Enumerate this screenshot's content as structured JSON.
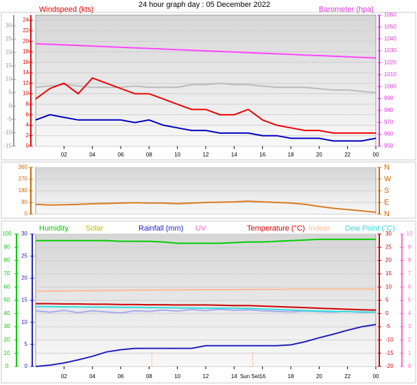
{
  "chart_data": [
    {
      "type": "line",
      "title": "24 hour graph day : 05 December 2022",
      "x": [
        0,
        1,
        2,
        3,
        4,
        5,
        6,
        7,
        8,
        9,
        10,
        11,
        12,
        13,
        14,
        15,
        16,
        17,
        18,
        19,
        20,
        21,
        22,
        23,
        24
      ],
      "xlim": [
        0,
        24
      ],
      "xticks": [
        {
          "value": 2,
          "label": "02"
        },
        {
          "value": 4,
          "label": "04"
        },
        {
          "value": 6,
          "label": "06"
        },
        {
          "value": 8,
          "label": "08"
        },
        10,
        12,
        14,
        16,
        18,
        20,
        22,
        {
          "value": 24,
          "label": "00"
        }
      ],
      "axes": [
        {
          "label": "Windspeed (kts)",
          "color": "#e00000",
          "ylim": [
            0,
            25
          ],
          "yticks": [
            0,
            2,
            4,
            6,
            8,
            10,
            12,
            14,
            16,
            18,
            20,
            22,
            24
          ],
          "grid": true
        },
        {
          "color": "#999999",
          "ylim": [
            -15,
            34
          ],
          "yticks": [
            -15,
            -10,
            -5,
            0,
            5,
            10,
            15,
            20,
            25,
            30
          ]
        },
        {
          "label": "Barometer (hpa)",
          "color": "#dd33dd",
          "ylim": [
            950,
            1060
          ],
          "yticks": [
            950,
            960,
            970,
            980,
            990,
            1000,
            1010,
            1020,
            1030,
            1040,
            1050,
            1060
          ]
        }
      ],
      "series": [
        {
          "color": "#ff44ff",
          "axis": 2,
          "values": [
            1036,
            1035.5,
            1035,
            1034.5,
            1034,
            1033.5,
            1033,
            1032.5,
            1032,
            1031.5,
            1031,
            1030.5,
            1030,
            1029.5,
            1029,
            1028.5,
            1028,
            1027.5,
            1027,
            1026.5,
            1026,
            1025.5,
            1025,
            1024.5,
            1024
          ]
        },
        {
          "color": "#bbbbbb",
          "axis": 1,
          "values": [
            7,
            7.5,
            8,
            7.5,
            7,
            7,
            7,
            7.5,
            7,
            7,
            7,
            8,
            8,
            8.5,
            8,
            8,
            7.5,
            7,
            7,
            7,
            6.5,
            6,
            6,
            5.5,
            5
          ]
        },
        {
          "color": "#ee0000",
          "axis": 0,
          "values": [
            9,
            11,
            12,
            10,
            13,
            12,
            11,
            10,
            10,
            9,
            8,
            7,
            7,
            6,
            6,
            7,
            5,
            4,
            3.5,
            3,
            3,
            2.5,
            2.5,
            2.5,
            2.5
          ]
        },
        {
          "color": "#0000c0",
          "axis": 0,
          "values": [
            5,
            6,
            5.5,
            5,
            5,
            5,
            5,
            4.5,
            5,
            4,
            3.5,
            3,
            3,
            2.5,
            2.5,
            2.5,
            2,
            2,
            1.5,
            1.5,
            1.5,
            1,
            1,
            1,
            1.5
          ]
        }
      ]
    },
    {
      "type": "line",
      "x": [
        0,
        1,
        2,
        3,
        4,
        5,
        6,
        7,
        8,
        9,
        10,
        11,
        12,
        13,
        14,
        15,
        16,
        17,
        18,
        19,
        20,
        21,
        22,
        23,
        24
      ],
      "xlim": [
        0,
        24
      ],
      "axes": [
        {
          "color": "#cc6600",
          "ylim": [
            0,
            360
          ],
          "yticks": [
            0,
            90,
            180,
            270,
            360
          ],
          "grid": true
        },
        {
          "color": "#cc6600",
          "ylim": [
            0,
            360
          ],
          "yticks": [
            {
              "value": 0,
              "label": "N"
            },
            {
              "value": 90,
              "label": "E"
            },
            {
              "value": 180,
              "label": "S"
            },
            {
              "value": 270,
              "label": "W"
            },
            {
              "value": 360,
              "label": "N"
            }
          ]
        }
      ],
      "series": [
        {
          "color": "#d97b22",
          "axis": 0,
          "values": [
            75,
            70,
            72,
            75,
            80,
            82,
            85,
            88,
            85,
            85,
            80,
            85,
            90,
            92,
            95,
            100,
            95,
            90,
            85,
            75,
            60,
            45,
            35,
            25,
            15
          ]
        }
      ]
    },
    {
      "type": "line",
      "x": [
        0,
        1,
        2,
        3,
        4,
        5,
        6,
        7,
        8,
        9,
        10,
        11,
        12,
        13,
        14,
        15,
        16,
        17,
        18,
        19,
        20,
        21,
        22,
        23,
        24
      ],
      "xlim": [
        0,
        24
      ],
      "xticks": [
        {
          "value": 2,
          "label": "02"
        },
        {
          "value": 4,
          "label": "04"
        },
        {
          "value": 6,
          "label": "06"
        },
        {
          "value": 8,
          "label": "08"
        },
        10,
        12,
        14,
        16,
        18,
        20,
        22,
        {
          "value": 24,
          "label": "00"
        }
      ],
      "markers": [
        {
          "value": 8.2
        },
        {
          "value": 15.3,
          "label": "Sun Set"
        }
      ],
      "axes": [
        {
          "color": "#00cc00",
          "ylim": [
            0,
            100
          ],
          "yticks": [
            0,
            10,
            20,
            30,
            40,
            50,
            60,
            70,
            80,
            90,
            100
          ],
          "grid": true
        },
        {
          "color": "#2020c0",
          "ylim": [
            0,
            30
          ],
          "yticks": [
            0,
            5,
            10,
            15,
            20,
            25,
            30
          ]
        },
        {
          "color": "#cc0000",
          "ylim": [
            -20,
            30
          ],
          "yticks": [
            -20,
            -15,
            -10,
            -5,
            0,
            5,
            10,
            15,
            20,
            25,
            30
          ]
        },
        {
          "color": "#ff66cc",
          "ylim": [
            0,
            10
          ],
          "yticks": [
            0,
            1,
            2,
            3,
            4,
            5,
            6,
            7,
            8,
            9,
            10
          ]
        }
      ],
      "series": [
        {
          "name": "Humidity",
          "color": "#00cc00",
          "axis": 0,
          "values": [
            95,
            95,
            95,
            95,
            95,
            95,
            94.5,
            94.5,
            94.5,
            94,
            93,
            93,
            93,
            93,
            93.5,
            94,
            94,
            94.5,
            95,
            95.5,
            96,
            96,
            96,
            96,
            96
          ]
        },
        {
          "name": "Solar",
          "color": "#bbbb00"
        },
        {
          "name": "Rainfall (mm)",
          "color": "#2020c0",
          "axis": 1,
          "values": [
            0,
            0.3,
            0.8,
            1.5,
            2.3,
            3.3,
            3.8,
            4.1,
            4.1,
            4.1,
            4.1,
            4.1,
            4.7,
            4.7,
            4.7,
            4.7,
            4.7,
            4.7,
            4.9,
            5.6,
            6.5,
            7.3,
            8.2,
            9,
            9.5
          ]
        },
        {
          "name": "UV",
          "color": "#ff66cc"
        },
        {
          "name": "Temperature (°C)",
          "color": "#cc0000",
          "axis": 2,
          "values": [
            3.7,
            3.7,
            3.6,
            3.6,
            3.5,
            3.5,
            3.4,
            3.4,
            3.3,
            3.3,
            3.2,
            3.2,
            3.2,
            3.1,
            3,
            3,
            2.8,
            2.6,
            2.4,
            2.2,
            2,
            1.8,
            1.6,
            1.4,
            1.3
          ]
        },
        {
          "name": "Indoor",
          "color": "#ffbb99",
          "axis": 2,
          "values": [
            8.4,
            8.5,
            8.5,
            8.6,
            8.6,
            8.7,
            8.7,
            8.8,
            8.8,
            8.9,
            8.9,
            9,
            9,
            9,
            9,
            9.1,
            9.1,
            9.1,
            9.2,
            9.2,
            9.2,
            9.2,
            9.2,
            9.2,
            9.2
          ]
        },
        {
          "name": "Dew Point (°C)",
          "color": "#33dddd",
          "axis": 2,
          "values": [
            2.6,
            2.6,
            2.5,
            2.5,
            2.4,
            2.4,
            2.3,
            2.3,
            2.2,
            2.2,
            2.1,
            2.1,
            2,
            2,
            2,
            1.9,
            1.7,
            1.5,
            1.3,
            1.1,
            0.9,
            0.8,
            0.7,
            0.6,
            0.5
          ]
        },
        {
          "color": "#aaaaee",
          "axis": 2,
          "values": [
            1,
            0.5,
            1.2,
            0.3,
            1,
            0.6,
            0.2,
            1,
            0.8,
            1.3,
            0.9,
            1.5,
            1.1,
            1.6,
            1.2,
            1.4,
            1,
            0.8,
            0.6,
            0.9,
            0.7,
            0.5,
            0.8,
            0.4,
            0.6
          ]
        }
      ]
    }
  ]
}
